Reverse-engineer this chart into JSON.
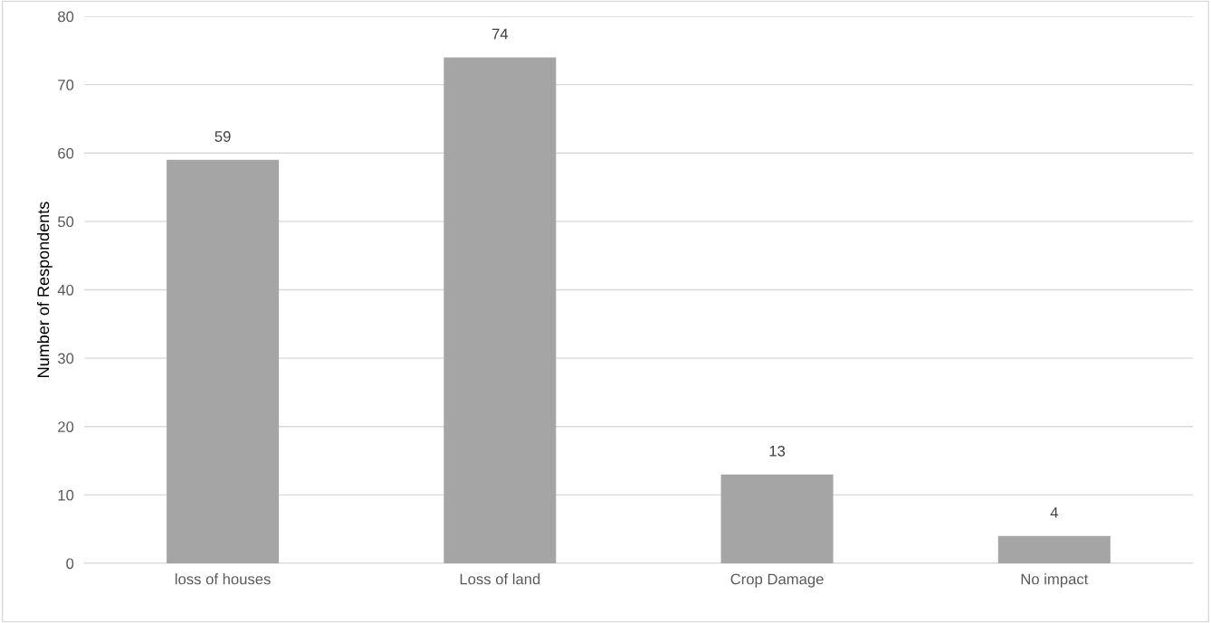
{
  "chart_data": {
    "type": "bar",
    "ylabel": "Number of Respondents",
    "categories": [
      "loss of houses",
      "Loss of land",
      "Crop Damage",
      "No impact"
    ],
    "values": [
      59,
      74,
      13,
      4
    ],
    "color": "#a5a5a5",
    "ylim": [
      0,
      80
    ],
    "yticks": [
      0,
      10,
      20,
      30,
      40,
      50,
      60,
      70,
      80
    ],
    "grid": "y",
    "data_labels": true,
    "legend": false
  }
}
